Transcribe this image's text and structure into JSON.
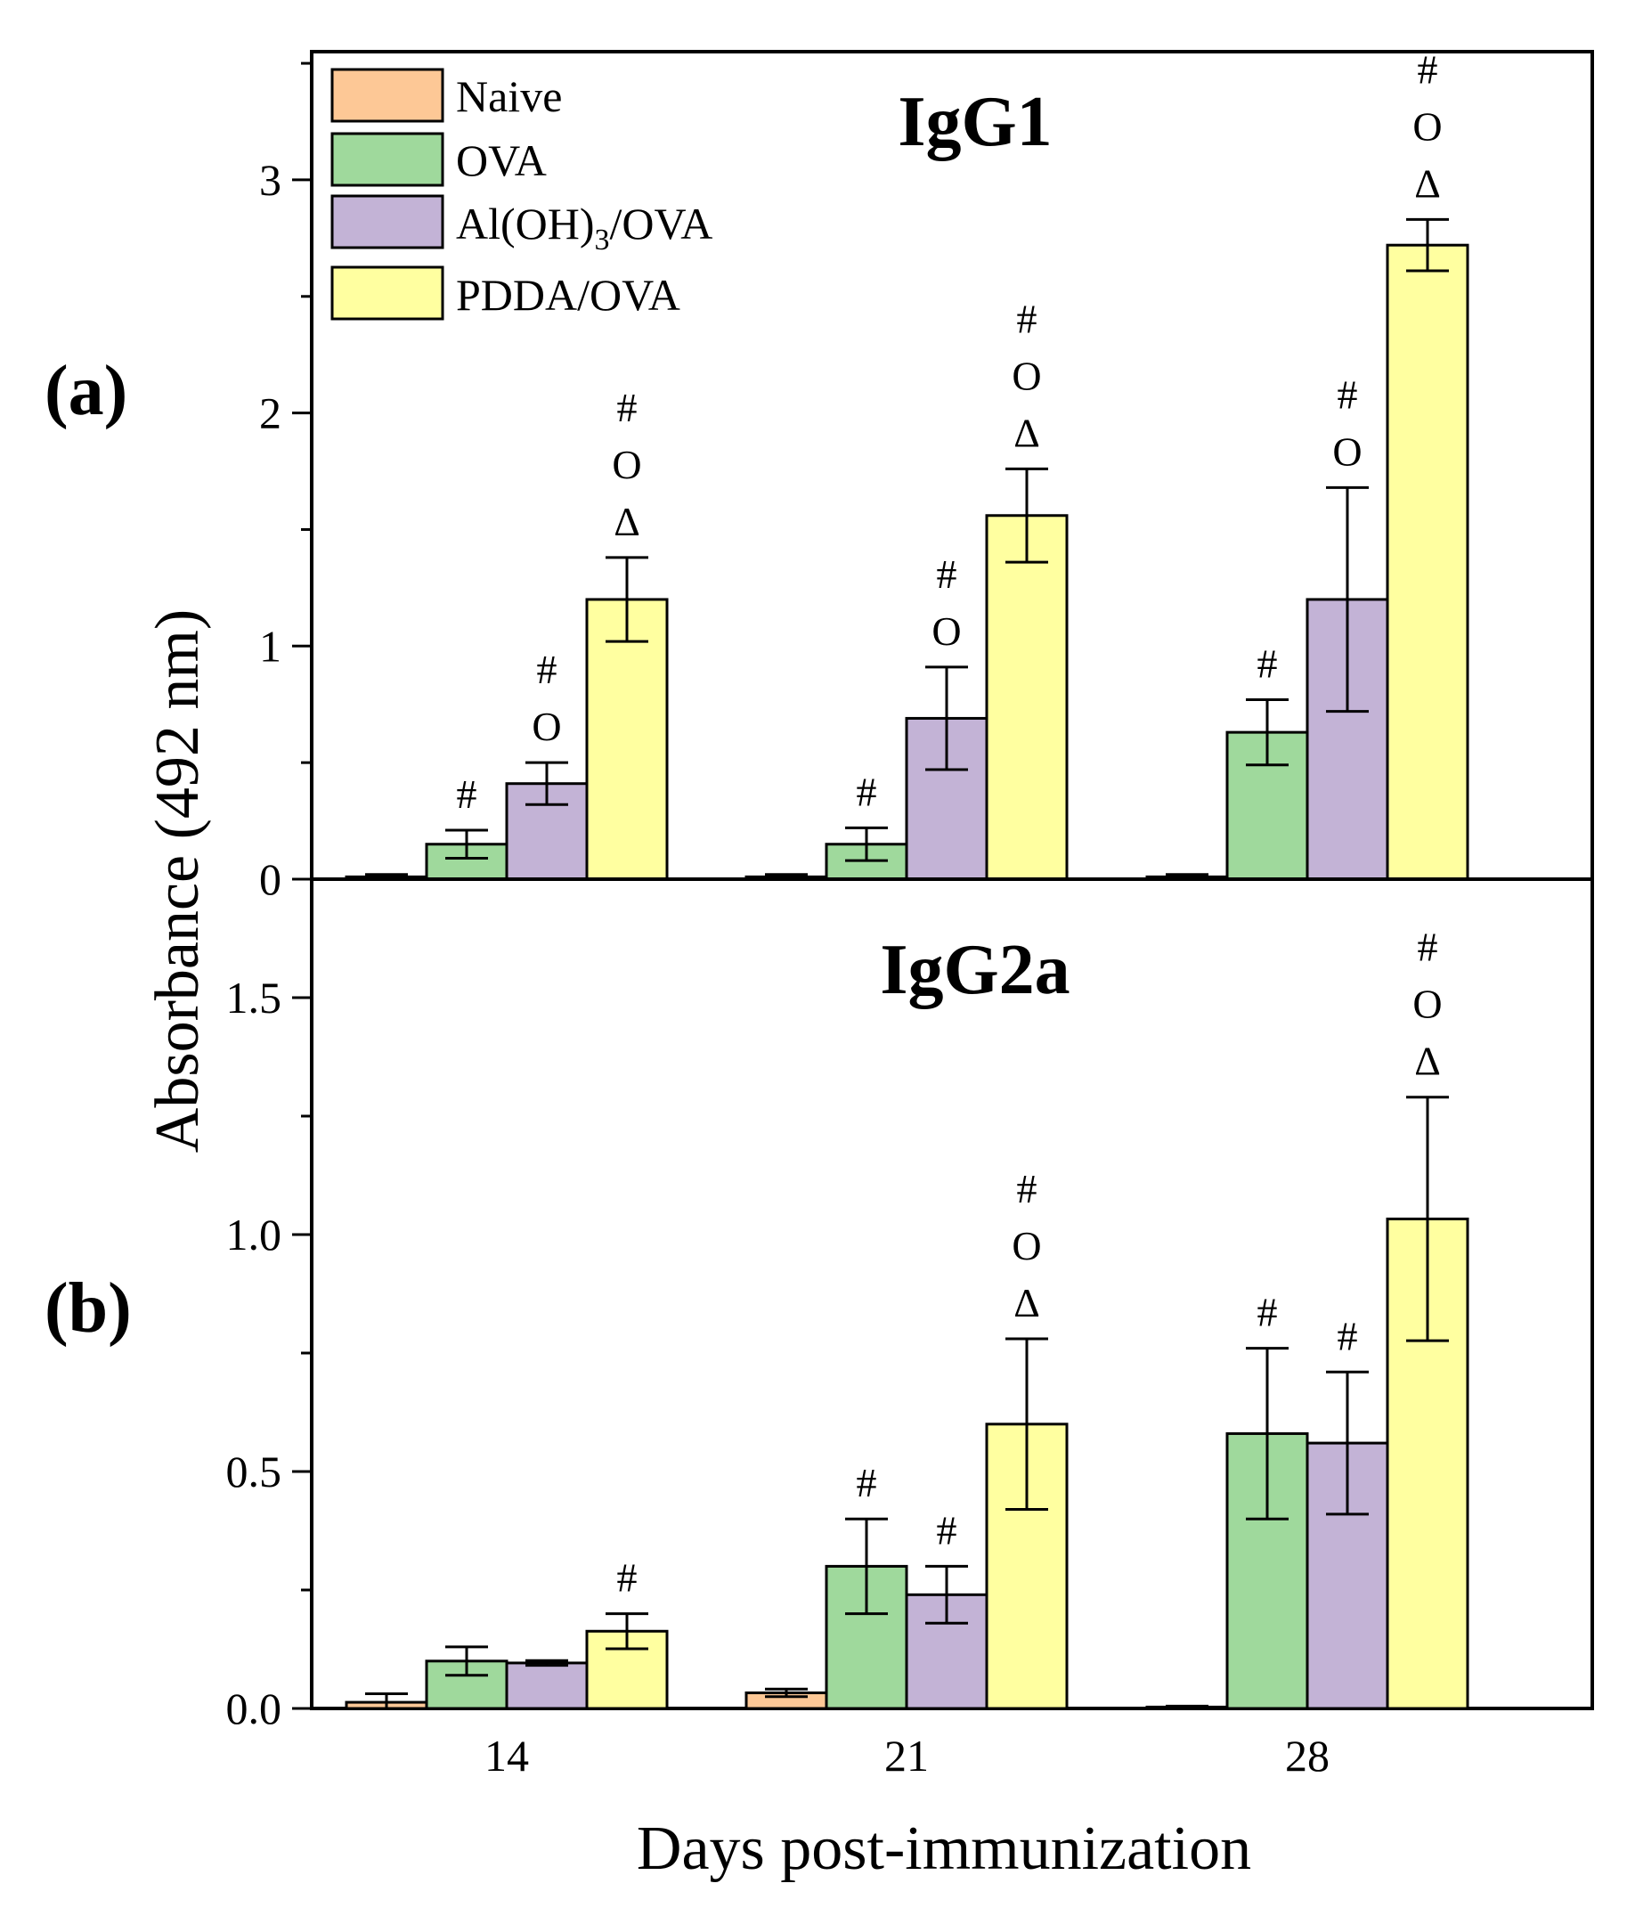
{
  "xlabel": "Days post-immunization",
  "ylabel": "Absorbance (492 nm)",
  "colors": {
    "Naive": "#fdc896",
    "OVA": "#9fd99c",
    "Al(OH)3/OVA": "#c3b3d6",
    "PDDA/OVA": "#ffffa0"
  },
  "legend": [
    {
      "key": "Naive",
      "label": "Naive"
    },
    {
      "key": "OVA",
      "label": "OVA"
    },
    {
      "key": "Al(OH)3/OVA",
      "label_main": "Al(OH)",
      "label_sub": "3",
      "label_tail": "/OVA"
    },
    {
      "key": "PDDA/OVA",
      "label": "PDDA/OVA"
    }
  ],
  "chart_data": [
    {
      "type": "bar",
      "panel": "(a)",
      "title": "IgG1",
      "categories": [
        "14",
        "21",
        "28"
      ],
      "ylim": [
        0,
        3.55
      ],
      "yticks": [
        0,
        1,
        2,
        3
      ],
      "ytick_labels": [
        "0",
        "1",
        "2",
        "3"
      ],
      "series": [
        {
          "name": "Naive",
          "values": [
            0.01,
            0.01,
            0.01
          ],
          "errors": [
            0.01,
            0.01,
            0.01
          ],
          "marks": [
            "",
            "",
            ""
          ]
        },
        {
          "name": "OVA",
          "values": [
            0.15,
            0.15,
            0.63
          ],
          "errors": [
            0.06,
            0.07,
            0.14
          ],
          "marks": [
            "#",
            "#",
            "#"
          ]
        },
        {
          "name": "Al(OH)3/OVA",
          "values": [
            0.41,
            0.69,
            1.2
          ],
          "errors": [
            0.09,
            0.22,
            0.48
          ],
          "marks": [
            "# O",
            "# O",
            "# O"
          ]
        },
        {
          "name": "PDDA/OVA",
          "values": [
            1.2,
            1.56,
            2.72
          ],
          "errors": [
            0.18,
            0.2,
            0.11
          ],
          "marks": [
            "# O Δ",
            "# O Δ",
            "# O Δ"
          ]
        }
      ]
    },
    {
      "type": "bar",
      "panel": "(b)",
      "title": "IgG2a",
      "categories": [
        "14",
        "21",
        "28"
      ],
      "xtick_labels": [
        "14",
        "21",
        "28"
      ],
      "ylim": [
        0,
        1.75
      ],
      "yticks": [
        0,
        0.5,
        1.0,
        1.5
      ],
      "ytick_labels": [
        "0.0",
        "0.5",
        "1.0",
        "1.5"
      ],
      "series": [
        {
          "name": "Naive",
          "values": [
            0.013,
            0.033,
            0.003
          ],
          "errors": [
            0.018,
            0.008,
            0.002
          ],
          "marks": [
            "",
            "",
            ""
          ]
        },
        {
          "name": "OVA",
          "values": [
            0.1,
            0.3,
            0.58
          ],
          "errors": [
            0.03,
            0.1,
            0.18
          ],
          "marks": [
            "",
            "#",
            "#"
          ]
        },
        {
          "name": "Al(OH)3/OVA",
          "values": [
            0.096,
            0.24,
            0.56
          ],
          "errors": [
            0.005,
            0.06,
            0.15
          ],
          "marks": [
            "",
            "#",
            "#"
          ]
        },
        {
          "name": "PDDA/OVA",
          "values": [
            0.163,
            0.6,
            1.033
          ],
          "errors": [
            0.037,
            0.18,
            0.257
          ],
          "marks": [
            "#",
            "# O Δ",
            "# O Δ"
          ]
        }
      ]
    }
  ]
}
